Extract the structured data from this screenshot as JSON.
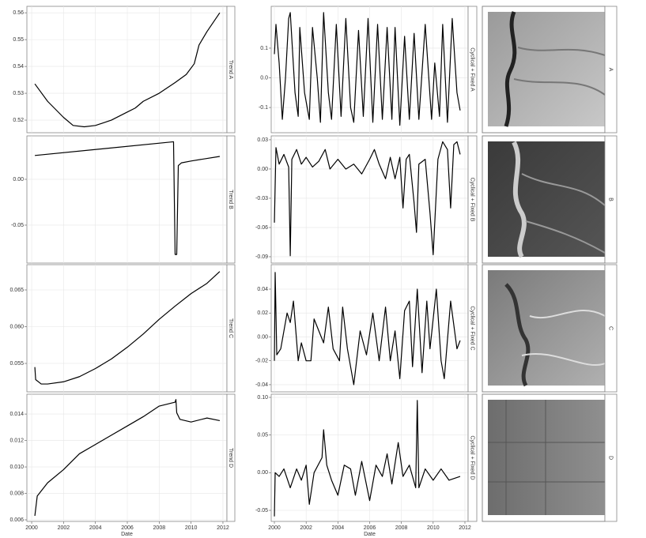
{
  "chart_data": [
    {
      "type": "line",
      "strip": "Trend A",
      "color": "#000000",
      "grid": true,
      "x": [
        2000.2,
        2001,
        2002,
        2002.6,
        2003.3,
        2004,
        2005,
        2006,
        2006.5,
        2007,
        2008,
        2009,
        2009.7,
        2010.2,
        2010.5,
        2011,
        2011.8
      ],
      "values": [
        0.5335,
        0.527,
        0.521,
        0.518,
        0.5175,
        0.518,
        0.52,
        0.523,
        0.5245,
        0.527,
        0.53,
        0.534,
        0.537,
        0.541,
        0.548,
        0.553,
        0.56
      ],
      "xlim": [
        1999.7,
        2012.25
      ],
      "ylim": [
        0.5153,
        0.5624
      ],
      "yticks": [
        0.52,
        0.53,
        0.54,
        0.55,
        0.56
      ]
    },
    {
      "type": "line",
      "strip": "Cyclical + Fixed A",
      "color": "#000000",
      "grid": true,
      "x": [
        2000.0,
        2000.1,
        2000.3,
        2000.5,
        2000.7,
        2000.9,
        2001.0,
        2001.3,
        2001.5,
        2001.6,
        2001.9,
        2002.2,
        2002.4,
        2002.7,
        2002.9,
        2003.1,
        2003.4,
        2003.6,
        2003.9,
        2004.2,
        2004.5,
        2004.8,
        2005.0,
        2005.3,
        2005.6,
        2005.9,
        2006.2,
        2006.5,
        2006.8,
        2007.1,
        2007.4,
        2007.6,
        2007.9,
        2008.2,
        2008.5,
        2008.8,
        2009.1,
        2009.5,
        2009.9,
        2010.1,
        2010.4,
        2010.6,
        2010.9,
        2011.2,
        2011.5,
        2011.7
      ],
      "values": [
        0.08,
        0.18,
        0.05,
        -0.14,
        0.0,
        0.2,
        0.22,
        -0.05,
        -0.13,
        0.17,
        -0.05,
        -0.14,
        0.17,
        0.0,
        -0.15,
        0.22,
        -0.05,
        -0.14,
        0.18,
        -0.13,
        0.2,
        -0.1,
        -0.15,
        0.16,
        -0.13,
        0.2,
        -0.15,
        0.18,
        -0.14,
        0.17,
        -0.14,
        0.17,
        -0.16,
        0.14,
        -0.14,
        0.15,
        -0.14,
        0.18,
        -0.14,
        0.05,
        -0.13,
        0.18,
        -0.15,
        0.2,
        -0.05,
        -0.11
      ],
      "xlim": [
        1999.8,
        2012.2
      ],
      "ylim": [
        -0.185,
        0.241
      ],
      "yticks": [
        {
          "value": 0.1,
          "label": "0.1"
        },
        {
          "value": 0,
          "label": "0.0"
        },
        -0.1
      ]
    },
    {
      "type": "line",
      "strip": "Trend B",
      "color": "#000000",
      "grid": true,
      "x": [
        2000.2,
        2008.9,
        2009.0,
        2009.1,
        2009.2,
        2009.4,
        2010,
        2011.8
      ],
      "values": [
        0.026,
        0.041,
        -0.082,
        -0.082,
        0.015,
        0.018,
        0.02,
        0.025
      ],
      "xlim": [
        1999.7,
        2012.25
      ],
      "ylim": [
        -0.0914,
        0.0474
      ],
      "yticks": [
        {
          "value": 0,
          "label": "0.00"
        },
        -0.05
      ]
    },
    {
      "type": "line",
      "strip": "Cyclical + Fixed B",
      "color": "#000000",
      "grid": true,
      "x": [
        2000.0,
        2000.1,
        2000.3,
        2000.6,
        2000.9,
        2001.0,
        2001.1,
        2001.4,
        2001.7,
        2002.0,
        2002.4,
        2002.8,
        2003.2,
        2003.5,
        2004.0,
        2004.5,
        2005.0,
        2005.5,
        2006.0,
        2006.3,
        2006.6,
        2007.0,
        2007.3,
        2007.6,
        2007.9,
        2008.1,
        2008.3,
        2008.5,
        2008.8,
        2008.95,
        2009.1,
        2009.5,
        2009.8,
        2010.0,
        2010.3,
        2010.6,
        2010.9,
        2011.1,
        2011.3,
        2011.5,
        2011.7
      ],
      "values": [
        -0.055,
        0.022,
        0.005,
        0.015,
        0.002,
        -0.089,
        0.01,
        0.02,
        0.005,
        0.012,
        0.002,
        0.008,
        0.02,
        0.0,
        0.01,
        0.0,
        0.005,
        -0.005,
        0.01,
        0.02,
        0.005,
        -0.01,
        0.012,
        -0.01,
        0.012,
        -0.04,
        0.01,
        0.015,
        -0.035,
        -0.065,
        0.005,
        0.01,
        -0.045,
        -0.088,
        0.01,
        0.028,
        0.02,
        -0.04,
        0.025,
        0.028,
        0.015
      ],
      "xlim": [
        1999.8,
        2012.2
      ],
      "ylim": [
        -0.0965,
        0.034
      ],
      "yticks": [
        0.03,
        {
          "value": 0,
          "label": "0.00"
        },
        -0.03,
        -0.06,
        -0.09
      ]
    },
    {
      "type": "line",
      "strip": "Trend C",
      "color": "#000000",
      "grid": true,
      "x": [
        2000.2,
        2000.25,
        2000.6,
        2001,
        2002,
        2003,
        2004,
        2005,
        2006,
        2007,
        2008,
        2009,
        2010,
        2011,
        2011.8
      ],
      "values": [
        0.0545,
        0.0528,
        0.0522,
        0.0522,
        0.0525,
        0.0532,
        0.0543,
        0.0556,
        0.0572,
        0.059,
        0.061,
        0.0628,
        0.0645,
        0.0659,
        0.0675
      ],
      "xlim": [
        1999.7,
        2012.25
      ],
      "ylim": [
        0.05113,
        0.06844
      ],
      "yticks": [
        0.055,
        {
          "value": 0.06,
          "label": "0.060"
        },
        0.065
      ]
    },
    {
      "type": "line",
      "strip": "Cyclical + Fixed C",
      "color": "#000000",
      "grid": true,
      "x": [
        2000.0,
        2000.05,
        2000.15,
        2000.4,
        2000.8,
        2001.0,
        2001.2,
        2001.5,
        2001.7,
        2002.0,
        2002.3,
        2002.5,
        2002.8,
        2003.1,
        2003.4,
        2003.7,
        2004.1,
        2004.3,
        2004.6,
        2005.0,
        2005.4,
        2005.8,
        2006.2,
        2006.6,
        2007.0,
        2007.3,
        2007.6,
        2007.9,
        2008.2,
        2008.5,
        2008.7,
        2009.0,
        2009.3,
        2009.6,
        2009.8,
        2010.2,
        2010.5,
        2010.7,
        2011.1,
        2011.5,
        2011.7
      ],
      "values": [
        -0.02,
        0.054,
        -0.015,
        -0.01,
        0.02,
        0.012,
        0.03,
        -0.02,
        -0.005,
        -0.02,
        -0.02,
        0.015,
        0.005,
        -0.005,
        0.025,
        -0.01,
        -0.02,
        0.025,
        -0.01,
        -0.04,
        0.005,
        -0.015,
        0.02,
        -0.02,
        0.025,
        -0.02,
        0.005,
        -0.035,
        0.022,
        0.03,
        -0.025,
        0.04,
        -0.03,
        0.03,
        -0.01,
        0.04,
        -0.02,
        -0.035,
        0.03,
        -0.01,
        -0.003
      ],
      "xlim": [
        1999.8,
        2012.2
      ],
      "ylim": [
        -0.046,
        0.0605
      ],
      "yticks": [
        0.04,
        0.02,
        {
          "value": 0,
          "label": "0.00"
        },
        -0.02,
        -0.04
      ]
    },
    {
      "type": "line",
      "strip": "Trend D",
      "color": "#000000",
      "grid": true,
      "xlabel": "Date",
      "x": [
        2000.2,
        2000.35,
        2001,
        2002,
        2003,
        2004,
        2005,
        2006,
        2007,
        2008,
        2009,
        2009.05,
        2009.1,
        2009.3,
        2010,
        2011,
        2011.8
      ],
      "values": [
        0.0063,
        0.0078,
        0.0088,
        0.0098,
        0.011,
        0.0117,
        0.0124,
        0.0131,
        0.0138,
        0.0146,
        0.0149,
        0.0151,
        0.0141,
        0.0136,
        0.0134,
        0.0137,
        0.0135
      ],
      "xlim": [
        1999.7,
        2012.25
      ],
      "xticks": [
        2000,
        2002,
        2004,
        2006,
        2008,
        2010,
        2012
      ],
      "ylim": [
        0.00588,
        0.0155
      ],
      "yticks": [
        0.006,
        0.008,
        {
          "value": 0.01,
          "label": "0.010"
        },
        0.012,
        0.014
      ]
    },
    {
      "type": "line",
      "strip": "Cyclical + Fixed D",
      "color": "#000000",
      "grid": true,
      "xlabel": "Date",
      "x": [
        2000.0,
        2000.05,
        2000.3,
        2000.6,
        2001.0,
        2001.4,
        2001.7,
        2002.0,
        2002.2,
        2002.5,
        2003.0,
        2003.1,
        2003.3,
        2003.6,
        2004.0,
        2004.4,
        2004.8,
        2005.1,
        2005.5,
        2006.0,
        2006.4,
        2006.8,
        2007.1,
        2007.4,
        2007.8,
        2008.1,
        2008.5,
        2008.9,
        2009.0,
        2009.1,
        2009.5,
        2010.0,
        2010.5,
        2011.0,
        2011.7
      ],
      "values": [
        -0.058,
        0.0,
        -0.005,
        0.005,
        -0.02,
        0.005,
        -0.01,
        0.01,
        -0.042,
        0.0,
        0.02,
        0.057,
        0.01,
        -0.01,
        -0.03,
        0.01,
        0.005,
        -0.03,
        0.015,
        -0.037,
        0.01,
        -0.005,
        0.025,
        -0.015,
        0.04,
        -0.005,
        0.01,
        -0.02,
        0.096,
        -0.02,
        0.005,
        -0.01,
        0.005,
        -0.01,
        -0.005
      ],
      "xlim": [
        1999.8,
        2012.2
      ],
      "xticks": [
        2000,
        2002,
        2004,
        2006,
        2008,
        2010,
        2012
      ],
      "ylim": [
        -0.0647,
        0.1042
      ],
      "yticks": [
        {
          "value": 0.1,
          "label": "0.10"
        },
        0.05,
        {
          "value": 0,
          "label": "0.00"
        },
        -0.05
      ]
    }
  ],
  "images": [
    {
      "label": "A"
    },
    {
      "label": "B"
    },
    {
      "label": "C"
    },
    {
      "label": "D"
    }
  ]
}
